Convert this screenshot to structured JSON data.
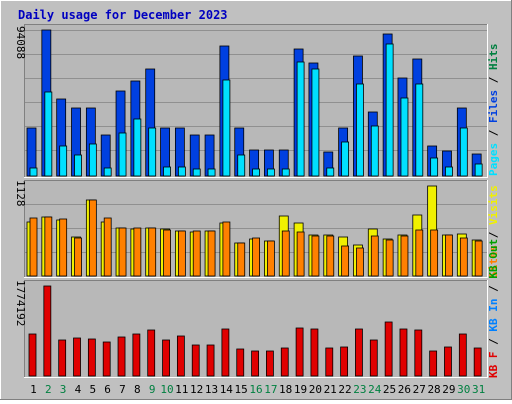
{
  "title": "Daily usage for December 2023",
  "colors": {
    "background": "#c0c0c0",
    "plot_bg": "#b8b8b8",
    "title": "#0000c0",
    "pages": "#00e0ff",
    "files": "#0040e0",
    "hits": "#008040",
    "visits": "#f0f000",
    "sites": "#ff8000",
    "kb_out": "#00a000",
    "kb_in": "#0080ff",
    "kb_f": "#e00000",
    "weekend_label": "#008040",
    "weekday_label": "#000000"
  },
  "labels": {
    "top_max": "94088",
    "mid_max": "1128",
    "bot_max": "1774192",
    "legend_pages": "Pages",
    "legend_files": "Files",
    "legend_hits": "Hits",
    "legend_visits": "Visits",
    "legend_sites": "Sites",
    "legend_kbout": "KB Out",
    "legend_kbin": "KB In",
    "legend_kbf": "KB F",
    "sep": "/"
  },
  "chart_data": {
    "type": "bar",
    "title": "Daily usage for December 2023",
    "categories": [
      "1",
      "2",
      "3",
      "4",
      "5",
      "6",
      "7",
      "8",
      "9",
      "10",
      "11",
      "12",
      "13",
      "14",
      "15",
      "16",
      "17",
      "18",
      "19",
      "20",
      "21",
      "22",
      "23",
      "24",
      "25",
      "26",
      "27",
      "28",
      "29",
      "30",
      "31"
    ],
    "weekend_days": [
      "2",
      "3",
      "9",
      "10",
      "16",
      "17",
      "23",
      "24",
      "30",
      "31"
    ],
    "panels": [
      {
        "name": "hits-files-pages",
        "ymax": 94088,
        "series": [
          {
            "name": "Hits",
            "values": [
              30700,
              94088,
              49600,
              43500,
              43500,
              26600,
              54700,
              60900,
              69000,
              31200,
              30700,
              26600,
              26600,
              83500,
              31200,
              17000,
              17000,
              17000,
              82000,
              72500,
              15200,
              30700,
              77200,
              41000,
              91500,
              63100,
              75200,
              19200,
              16300,
              43500,
              14300
            ]
          },
          {
            "name": "Files",
            "values": [
              30700,
              94088,
              49600,
              43500,
              43500,
              26600,
              54700,
              60900,
              69000,
              31200,
              30700,
              26600,
              26600,
              83500,
              31200,
              17000,
              17000,
              17000,
              82000,
              72500,
              15200,
              30700,
              77200,
              41000,
              91500,
              63100,
              75200,
              19200,
              16300,
              43500,
              14300
            ]
          },
          {
            "name": "Pages",
            "values": [
              5000,
              54000,
              19200,
              13500,
              20700,
              5000,
              27600,
              36800,
              31200,
              6100,
              6100,
              4500,
              4500,
              61900,
              13500,
              4500,
              4500,
              4500,
              73400,
              69100,
              5000,
              22200,
              59500,
              32200,
              85300,
              50200,
              59500,
              11400,
              5500,
              31200,
              8000
            ]
          }
        ]
      },
      {
        "name": "visits-sites",
        "ymax": 1128,
        "series": [
          {
            "name": "Visits",
            "values": [
              682,
              735,
              700,
              485,
              953,
              682,
              602,
              588,
              596,
              588,
              568,
              554,
              568,
              662,
              414,
              464,
              441,
              756,
              660,
              514,
              508,
              492,
              394,
              586,
              464,
              514,
              765,
              1128,
              514,
              524,
              455
            ]
          },
          {
            "name": "Sites",
            "values": [
              723,
              739,
              709,
              481,
              947,
              724,
              597,
              598,
              604,
              576,
              569,
              563,
              567,
              677,
              412,
              472,
              441,
              559,
              557,
              505,
              505,
              374,
              350,
              501,
              448,
              505,
              580,
              580,
              509,
              475,
              433
            ]
          }
        ]
      },
      {
        "name": "kbytes",
        "ymax": 1774192,
        "series": [
          {
            "name": "KB F",
            "values": [
              0,
              0,
              0,
              0,
              0,
              0,
              0,
              0,
              0,
              0,
              0,
              0,
              0,
              0,
              0,
              0,
              0,
              0,
              0,
              0,
              0,
              0,
              0,
              0,
              0,
              0,
              0,
              0,
              0,
              0,
              0
            ]
          },
          {
            "name": "KB In",
            "values": [
              0,
              0,
              0,
              0,
              0,
              0,
              0,
              0,
              0,
              0,
              0,
              0,
              0,
              0,
              0,
              0,
              0,
              0,
              0,
              0,
              0,
              0,
              0,
              0,
              0,
              0,
              0,
              0,
              0,
              0,
              0
            ]
          },
          {
            "name": "KB Out",
            "values": [
              822000,
              1774192,
              709000,
              743000,
              722000,
              674000,
              766000,
              832000,
              910000,
              715000,
              787000,
              613000,
              620000,
              924000,
              529000,
              488000,
              488000,
              545000,
              947000,
              924000,
              559000,
              569000,
              924000,
              710000,
              1067000,
              924000,
              910000,
              488000,
              569000,
              822000,
              545000
            ]
          }
        ]
      }
    ]
  }
}
